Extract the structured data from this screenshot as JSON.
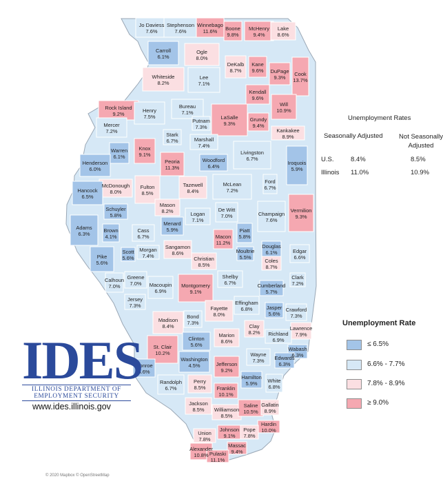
{
  "rates_table": {
    "title": "Unemployment Rates",
    "col_seasonal": "Seasonally Adjusted",
    "col_not_seasonal": "Not Seasonally Adjusted",
    "rows": [
      {
        "label": "U.S.",
        "seasonal": "8.4%",
        "not_seasonal": "8.5%"
      },
      {
        "label": "Illinois",
        "seasonal": "11.0%",
        "not_seasonal": "10.9%"
      }
    ]
  },
  "legend": {
    "title": "Unemployment Rate",
    "items": [
      {
        "label": "≤ 6.5%",
        "color": "#a3c4e8"
      },
      {
        "label": "6.6% - 7.7%",
        "color": "#d6e8f6"
      },
      {
        "label": "7.8% - 8.9%",
        "color": "#fbdfe2"
      },
      {
        "label": "≥ 9.0%",
        "color": "#f5a8b1"
      }
    ]
  },
  "logo": {
    "word": "IDES",
    "line1": "ILLINOIS DEPARTMENT OF",
    "line2": "EMPLOYMENT SECURITY"
  },
  "website": "www.ides.illinois.gov",
  "attribution": "© 2020 Mapbox © OpenStreetMap",
  "counties": [
    {
      "name": "Jo Daviess",
      "rate": "7.6%",
      "cls": 2
    },
    {
      "name": "Stephenson",
      "rate": "7.6%",
      "cls": 2
    },
    {
      "name": "Winnebago",
      "rate": "11.6%",
      "cls": 4
    },
    {
      "name": "Boone",
      "rate": "9.8%",
      "cls": 4
    },
    {
      "name": "McHenry",
      "rate": "9.4%",
      "cls": 4
    },
    {
      "name": "Lake",
      "rate": "8.6%",
      "cls": 3
    },
    {
      "name": "Carroll",
      "rate": "6.1%",
      "cls": 1
    },
    {
      "name": "Ogle",
      "rate": "8.0%",
      "cls": 3
    },
    {
      "name": "DeKalb",
      "rate": "8.7%",
      "cls": 3
    },
    {
      "name": "Kane",
      "rate": "9.6%",
      "cls": 4
    },
    {
      "name": "DuPage",
      "rate": "9.3%",
      "cls": 4
    },
    {
      "name": "Cook",
      "rate": "13.7%",
      "cls": 4
    },
    {
      "name": "Whiteside",
      "rate": "8.2%",
      "cls": 3
    },
    {
      "name": "Lee",
      "rate": "7.1%",
      "cls": 2
    },
    {
      "name": "Kendall",
      "rate": "9.6%",
      "cls": 4
    },
    {
      "name": "Will",
      "rate": "10.9%",
      "cls": 4
    },
    {
      "name": "Rock Island",
      "rate": "9.2%",
      "cls": 4
    },
    {
      "name": "Henry",
      "rate": "7.5%",
      "cls": 2
    },
    {
      "name": "Bureau",
      "rate": "7.1%",
      "cls": 2
    },
    {
      "name": "Putnam",
      "rate": "7.3%",
      "cls": 2
    },
    {
      "name": "LaSalle",
      "rate": "9.3%",
      "cls": 4
    },
    {
      "name": "Grundy",
      "rate": "9.4%",
      "cls": 4
    },
    {
      "name": "Kankakee",
      "rate": "8.9%",
      "cls": 3
    },
    {
      "name": "Mercer",
      "rate": "7.2%",
      "cls": 2
    },
    {
      "name": "Stark",
      "rate": "6.7%",
      "cls": 2
    },
    {
      "name": "Marshall",
      "rate": "7.4%",
      "cls": 2
    },
    {
      "name": "Warren",
      "rate": "6.1%",
      "cls": 1
    },
    {
      "name": "Knox",
      "rate": "9.1%",
      "cls": 4
    },
    {
      "name": "Peoria",
      "rate": "11.3%",
      "cls": 4
    },
    {
      "name": "Woodford",
      "rate": "6.4%",
      "cls": 1
    },
    {
      "name": "Livingston",
      "rate": "6.7%",
      "cls": 2
    },
    {
      "name": "Iroquois",
      "rate": "5.9%",
      "cls": 1
    },
    {
      "name": "Henderson",
      "rate": "6.0%",
      "cls": 1
    },
    {
      "name": "McDonough",
      "rate": "8.0%",
      "cls": 3
    },
    {
      "name": "Fulton",
      "rate": "8.5%",
      "cls": 3
    },
    {
      "name": "Tazewell",
      "rate": "8.4%",
      "cls": 3
    },
    {
      "name": "McLean",
      "rate": "7.2%",
      "cls": 2
    },
    {
      "name": "Ford",
      "rate": "6.7%",
      "cls": 2
    },
    {
      "name": "Hancock",
      "rate": "6.5%",
      "cls": 1
    },
    {
      "name": "Schuyler",
      "rate": "5.8%",
      "cls": 1
    },
    {
      "name": "Mason",
      "rate": "8.2%",
      "cls": 3
    },
    {
      "name": "Logan",
      "rate": "7.1%",
      "cls": 2
    },
    {
      "name": "De Witt",
      "rate": "7.0%",
      "cls": 2
    },
    {
      "name": "Champaign",
      "rate": "7.6%",
      "cls": 2
    },
    {
      "name": "Vermilion",
      "rate": "9.3%",
      "cls": 4
    },
    {
      "name": "Adams",
      "rate": "6.3%",
      "cls": 1
    },
    {
      "name": "Brown",
      "rate": "4.1%",
      "cls": 1
    },
    {
      "name": "Cass",
      "rate": "6.7%",
      "cls": 2
    },
    {
      "name": "Menard",
      "rate": "5.9%",
      "cls": 1
    },
    {
      "name": "Macon",
      "rate": "11.2%",
      "cls": 4
    },
    {
      "name": "Piatt",
      "rate": "5.8%",
      "cls": 1
    },
    {
      "name": "Morgan",
      "rate": "7.4%",
      "cls": 2
    },
    {
      "name": "Sangamon",
      "rate": "8.6%",
      "cls": 3
    },
    {
      "name": "Douglas",
      "rate": "6.1%",
      "cls": 1
    },
    {
      "name": "Edgar",
      "rate": "6.6%",
      "cls": 2
    },
    {
      "name": "Pike",
      "rate": "5.6%",
      "cls": 1
    },
    {
      "name": "Scott",
      "rate": "5.6%",
      "cls": 1
    },
    {
      "name": "Christian",
      "rate": "8.5%",
      "cls": 3
    },
    {
      "name": "Moultrie",
      "rate": "5.5%",
      "cls": 1
    },
    {
      "name": "Coles",
      "rate": "8.7%",
      "cls": 3
    },
    {
      "name": "Calhoun",
      "rate": "7.0%",
      "cls": 2
    },
    {
      "name": "Greene",
      "rate": "7.0%",
      "cls": 2
    },
    {
      "name": "Macoupin",
      "rate": "6.9%",
      "cls": 2
    },
    {
      "name": "Montgomery",
      "rate": "9.1%",
      "cls": 4
    },
    {
      "name": "Shelby",
      "rate": "6.7%",
      "cls": 2
    },
    {
      "name": "Cumberland",
      "rate": "5.7%",
      "cls": 1
    },
    {
      "name": "Clark",
      "rate": "7.2%",
      "cls": 2
    },
    {
      "name": "Jersey",
      "rate": "7.3%",
      "cls": 2
    },
    {
      "name": "Fayette",
      "rate": "8.0%",
      "cls": 3
    },
    {
      "name": "Effingham",
      "rate": "6.8%",
      "cls": 2
    },
    {
      "name": "Jasper",
      "rate": "5.6%",
      "cls": 1
    },
    {
      "name": "Crawford",
      "rate": "7.3%",
      "cls": 2
    },
    {
      "name": "Madison",
      "rate": "8.4%",
      "cls": 3
    },
    {
      "name": "Bond",
      "rate": "7.3%",
      "cls": 2
    },
    {
      "name": "Clay",
      "rate": "8.2%",
      "cls": 3
    },
    {
      "name": "Lawrence",
      "rate": "7.9%",
      "cls": 3
    },
    {
      "name": "Marion",
      "rate": "8.6%",
      "cls": 3
    },
    {
      "name": "Richland",
      "rate": "6.9%",
      "cls": 2
    },
    {
      "name": "Clinton",
      "rate": "5.6%",
      "cls": 1
    },
    {
      "name": "St. Clair",
      "rate": "10.2%",
      "cls": 4
    },
    {
      "name": "Wabash",
      "rate": "6.3%",
      "cls": 1
    },
    {
      "name": "Washington",
      "rate": "4.5%",
      "cls": 1
    },
    {
      "name": "Wayne",
      "rate": "7.3%",
      "cls": 2
    },
    {
      "name": "Edwards",
      "rate": "6.3%",
      "cls": 1
    },
    {
      "name": "Jefferson",
      "rate": "9.2%",
      "cls": 4
    },
    {
      "name": "Monroe",
      "rate": "5.6%",
      "cls": 1
    },
    {
      "name": "Perry",
      "rate": "8.5%",
      "cls": 3
    },
    {
      "name": "Hamilton",
      "rate": "5.9%",
      "cls": 1
    },
    {
      "name": "White",
      "rate": "6.8%",
      "cls": 2
    },
    {
      "name": "Randolph",
      "rate": "6.7%",
      "cls": 2
    },
    {
      "name": "Franklin",
      "rate": "10.1%",
      "cls": 4
    },
    {
      "name": "Jackson",
      "rate": "8.5%",
      "cls": 3
    },
    {
      "name": "Williamson",
      "rate": "8.5%",
      "cls": 3
    },
    {
      "name": "Saline",
      "rate": "10.5%",
      "cls": 4
    },
    {
      "name": "Gallatin",
      "rate": "8.9%",
      "cls": 3
    },
    {
      "name": "Hardin",
      "rate": "10.0%",
      "cls": 4
    },
    {
      "name": "Union",
      "rate": "7.8%",
      "cls": 3
    },
    {
      "name": "Johnson",
      "rate": "9.1%",
      "cls": 4
    },
    {
      "name": "Pope",
      "rate": "7.8%",
      "cls": 3
    },
    {
      "name": "Alexander",
      "rate": "10.8%",
      "cls": 4
    },
    {
      "name": "Massac",
      "rate": "9.4%",
      "cls": 4
    },
    {
      "name": "Pulaski",
      "rate": "11.1%",
      "cls": 4
    }
  ]
}
